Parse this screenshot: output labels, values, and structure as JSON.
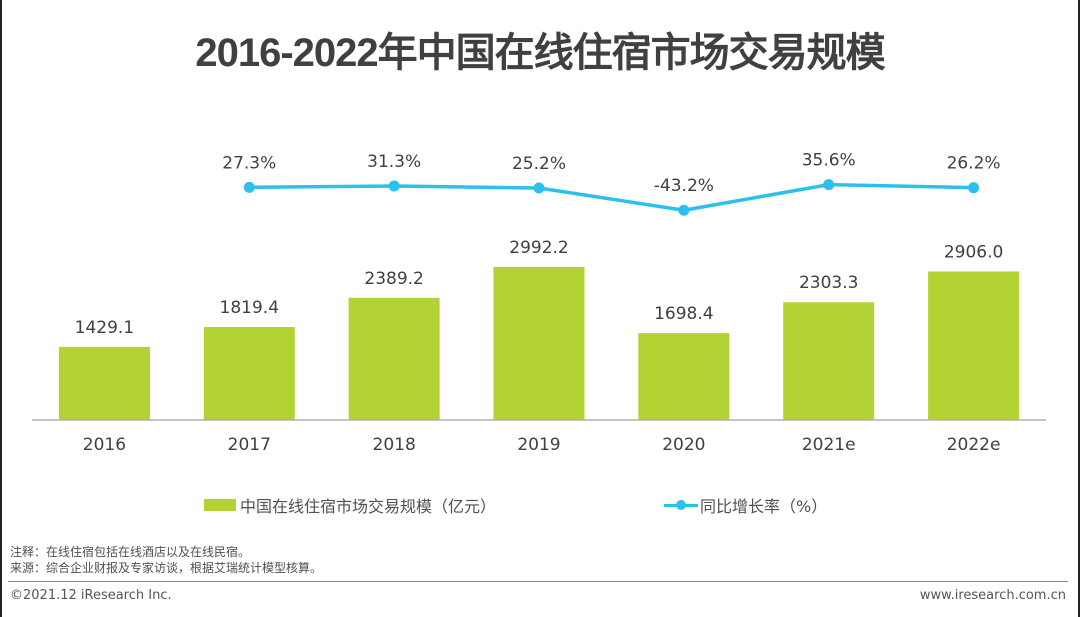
{
  "title": "2016-2022年中国在线住宿市场交易规模",
  "chart_data": {
    "type": "bar",
    "title": "2016-2022年中国在线住宿市场交易规模",
    "categories": [
      "2016",
      "2017",
      "2018",
      "2019",
      "2020",
      "2021e",
      "2022e"
    ],
    "series": [
      {
        "name": "中国在线住宿市场交易规模（亿元）",
        "type": "bar",
        "color": "#b3d335",
        "values": [
          1429.1,
          1819.4,
          2389.2,
          2992.2,
          1698.4,
          2303.3,
          2906.0
        ],
        "labels": [
          "1429.1",
          "1819.4",
          "2389.2",
          "2992.2",
          "1698.4",
          "2303.3",
          "2906.0"
        ]
      },
      {
        "name": "同比增长率（%）",
        "type": "line",
        "color": "#2bc1ec",
        "values": [
          null,
          27.3,
          31.3,
          25.2,
          -43.2,
          35.6,
          26.2
        ],
        "labels": [
          "",
          "27.3%",
          "31.3%",
          "25.2%",
          "-43.2%",
          "35.6%",
          "26.2%"
        ]
      }
    ],
    "xlabel": "",
    "ylabel": "",
    "grid": false,
    "legend_position": "bottom"
  },
  "legend": {
    "bar_label": "中国在线住宿市场交易规模（亿元）",
    "line_label": "同比增长率（%）"
  },
  "notes": {
    "note": "注释：在线住宿包括在线酒店以及在线民宿。",
    "source": "来源：综合企业财报及专家访谈，根据艾瑞统计模型核算。"
  },
  "footer": {
    "copyright": "©2021.12 iResearch Inc.",
    "website": "www.iresearch.com.cn"
  }
}
